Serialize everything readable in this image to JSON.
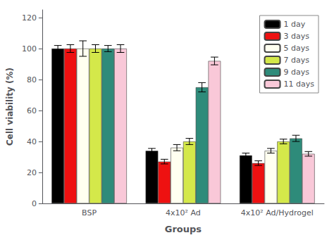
{
  "chart_data": {
    "type": "bar",
    "categories": [
      "BSP",
      "4x10² Ad",
      "4x10² Ad/Hydrogel"
    ],
    "series": [
      {
        "name": "1 day",
        "color": "#000000",
        "values": [
          100,
          34,
          31
        ],
        "errors": [
          2.0,
          1.5,
          1.5
        ]
      },
      {
        "name": "3 days",
        "color": "#ee1111",
        "values": [
          100,
          27,
          26
        ],
        "errors": [
          2.5,
          1.5,
          1.5
        ]
      },
      {
        "name": "5 days",
        "color": "#fffff0",
        "values": [
          100,
          36,
          34
        ],
        "errors": [
          5.0,
          2.0,
          1.5
        ]
      },
      {
        "name": "7 days",
        "color": "#d4e84a",
        "values": [
          100,
          40,
          40
        ],
        "errors": [
          2.5,
          2.0,
          1.5
        ]
      },
      {
        "name": "9 days",
        "color": "#2e8b7a",
        "values": [
          100,
          75,
          42
        ],
        "errors": [
          2.0,
          3.0,
          2.0
        ]
      },
      {
        "name": "11 days",
        "color": "#f9c8d8",
        "values": [
          100,
          92,
          32
        ],
        "errors": [
          2.5,
          2.5,
          1.5
        ]
      }
    ],
    "xlabel": "Groups",
    "ylabel": "Cell viability (%)",
    "ylim": [
      0,
      125
    ],
    "yticks": [
      0,
      20,
      40,
      60,
      80,
      100,
      120
    ],
    "grid": false,
    "legend": "upper right"
  }
}
